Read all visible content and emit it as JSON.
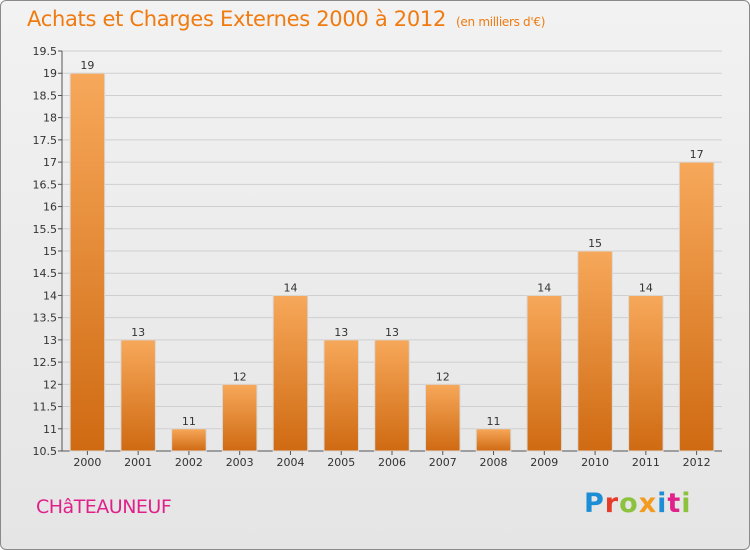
{
  "title": "Achats et Charges Externes 2000 à 2012",
  "unit": "(en milliers d'€)",
  "commune": "CHâTEAUNEUF",
  "logo_text": "Proxiti",
  "colors": {
    "accent": "#f07b10",
    "bar_top": "#f7a85a",
    "bar_bottom": "#cf6a12",
    "commune": "#e1218b"
  },
  "chart_data": {
    "type": "bar",
    "title": "Achats et Charges Externes 2000 à 2012",
    "subtitle": "(en milliers d'€)",
    "xlabel": "",
    "ylabel": "",
    "categories": [
      "2000",
      "2001",
      "2002",
      "2003",
      "2004",
      "2005",
      "2006",
      "2007",
      "2008",
      "2009",
      "2010",
      "2011",
      "2012"
    ],
    "values": [
      19,
      13,
      11,
      12,
      14,
      13,
      13,
      12,
      11,
      14,
      15,
      14,
      17
    ],
    "data_labels": [
      "19",
      "13",
      "11",
      "12",
      "14",
      "13",
      "13",
      "12",
      "11",
      "14",
      "15",
      "14",
      "17"
    ],
    "ylim": [
      10.5,
      19.5
    ],
    "yticks": [
      10.5,
      11,
      11.5,
      12,
      12.5,
      13,
      13.5,
      14,
      14.5,
      15,
      15.5,
      16,
      16.5,
      17,
      17.5,
      18,
      18.5,
      19,
      19.5
    ],
    "ytick_labels": [
      "10.5",
      "11",
      "11.5",
      "12",
      "12.5",
      "13",
      "13.5",
      "14",
      "14.5",
      "15",
      "15.5",
      "16",
      "16.5",
      "17",
      "17.5",
      "18",
      "18.5",
      "19",
      "19.5"
    ],
    "grid": true,
    "legend": "none"
  }
}
